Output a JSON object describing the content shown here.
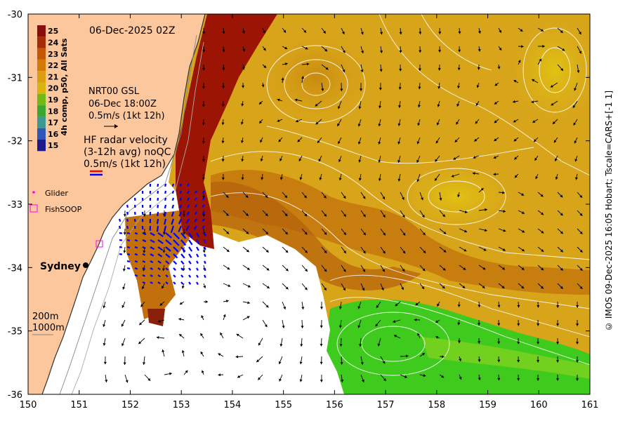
{
  "map": {
    "timestamp": "06-Dec-2025 02Z",
    "x_ticks": [
      "150",
      "151",
      "152",
      "153",
      "154",
      "155",
      "156",
      "157",
      "158",
      "159",
      "160",
      "161"
    ],
    "y_ticks": [
      "-30",
      "-31",
      "-32",
      "-33",
      "-34",
      "-35",
      "-36"
    ],
    "x_range": [
      150,
      161
    ],
    "y_range": [
      -36,
      -30
    ],
    "colorbar": {
      "title": "4h comp, p50, All Sats",
      "values": [
        "25",
        "24",
        "23",
        "22",
        "21",
        "20",
        "19",
        "18",
        "17",
        "16",
        "15"
      ],
      "colors": [
        "#8a0c0c",
        "#a72b05",
        "#c45606",
        "#d37a06",
        "#dd9c12",
        "#d8b50e",
        "#72b916",
        "#3aa830",
        "#3b9a92",
        "#2d57b8",
        "#1c1a8e"
      ]
    },
    "legend": {
      "model_line1": "NRT00 GSL",
      "model_line2": "06-Dec 18:00Z",
      "model_scale": "0.5m/s (1kt 12h)",
      "radar_line1": "HF radar velocity",
      "radar_line2": "(3-12h avg) noQC",
      "radar_scale": "0.5m/s (1kt 12h)",
      "glider": "Glider",
      "fishsoop": "FishSOOP",
      "city": "Sydney",
      "depth1": "200m",
      "depth2": "1000m"
    },
    "credit": "© IMOS 09-Dec-2025 16:05 Hobart; Tscale=CARS+[-1 1]",
    "colors": {
      "land": "#fdc79e",
      "ocean_nodata": "#ffffff",
      "warm_core": "#d7a21a",
      "cool_water": "#3fca1e",
      "eac_core": "#9c1404",
      "radar_arrow": "#0000ff",
      "glider": "#ff00ff"
    }
  }
}
